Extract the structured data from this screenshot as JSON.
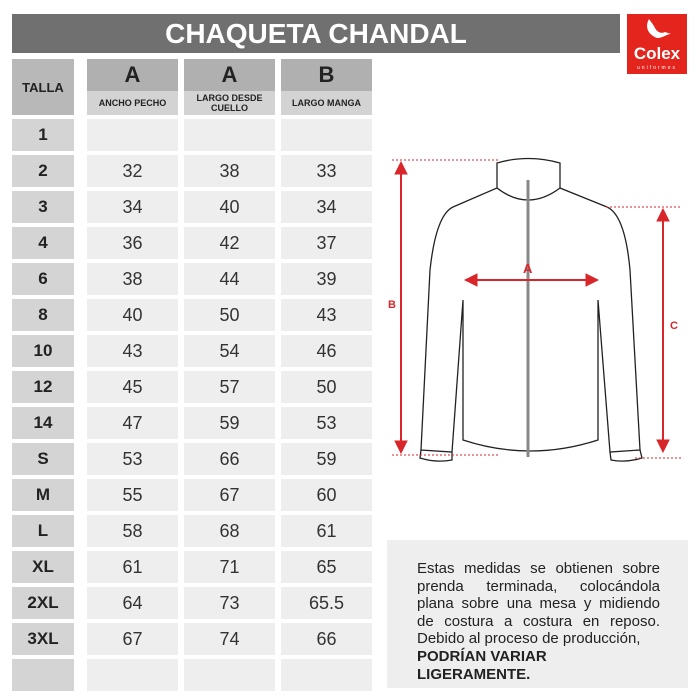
{
  "title": "CHAQUETA CHANDAL",
  "logo": {
    "brand": "Colex",
    "sub": "uniformes",
    "color": "#e3251d"
  },
  "table": {
    "talla_header": "TALLA",
    "columns": [
      {
        "code": "A",
        "label": "ANCHO PECHO"
      },
      {
        "code": "A",
        "label": "LARGO DESDE CUELLO"
      },
      {
        "code": "B",
        "label": "LARGO MANGA"
      }
    ],
    "rows": [
      {
        "talla": "1",
        "values": [
          "",
          "",
          ""
        ]
      },
      {
        "talla": "2",
        "values": [
          "32",
          "38",
          "33"
        ]
      },
      {
        "talla": "3",
        "values": [
          "34",
          "40",
          "34"
        ]
      },
      {
        "talla": "4",
        "values": [
          "36",
          "42",
          "37"
        ]
      },
      {
        "talla": "6",
        "values": [
          "38",
          "44",
          "39"
        ]
      },
      {
        "talla": "8",
        "values": [
          "40",
          "50",
          "43"
        ]
      },
      {
        "talla": "10",
        "values": [
          "43",
          "54",
          "46"
        ]
      },
      {
        "talla": "12",
        "values": [
          "45",
          "57",
          "50"
        ]
      },
      {
        "talla": "14",
        "values": [
          "47",
          "59",
          "53"
        ]
      },
      {
        "talla": "S",
        "values": [
          "53",
          "66",
          "59"
        ]
      },
      {
        "talla": "M",
        "values": [
          "55",
          "67",
          "60"
        ]
      },
      {
        "talla": "L",
        "values": [
          "58",
          "68",
          "61"
        ]
      },
      {
        "talla": "XL",
        "values": [
          "61",
          "71",
          "65"
        ]
      },
      {
        "talla": "2XL",
        "values": [
          "64",
          "73",
          "65.5"
        ]
      },
      {
        "talla": "3XL",
        "values": [
          "67",
          "74",
          "66"
        ]
      },
      {
        "talla": "",
        "values": [
          "",
          "",
          ""
        ]
      }
    ]
  },
  "diagram": {
    "labels": {
      "a": "A",
      "b": "B",
      "c": "C"
    },
    "accent": "#d9262b"
  },
  "note": {
    "text": "Estas medidas se obtienen sobre prenda terminada, colocándola plana sobre una mesa y midiendo de costura a costura en reposo. Debido al proceso de producción,",
    "bold": "PODRÍAN VARIAR LIGERAMENTE."
  }
}
